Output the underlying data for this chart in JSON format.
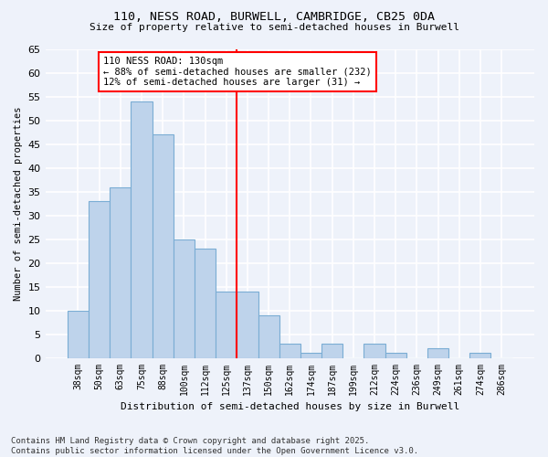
{
  "title1": "110, NESS ROAD, BURWELL, CAMBRIDGE, CB25 0DA",
  "title2": "Size of property relative to semi-detached houses in Burwell",
  "xlabel": "Distribution of semi-detached houses by size in Burwell",
  "ylabel": "Number of semi-detached properties",
  "categories": [
    "38sqm",
    "50sqm",
    "63sqm",
    "75sqm",
    "88sqm",
    "100sqm",
    "112sqm",
    "125sqm",
    "137sqm",
    "150sqm",
    "162sqm",
    "174sqm",
    "187sqm",
    "199sqm",
    "212sqm",
    "224sqm",
    "236sqm",
    "249sqm",
    "261sqm",
    "274sqm",
    "286sqm"
  ],
  "values": [
    10,
    33,
    36,
    54,
    47,
    25,
    23,
    14,
    14,
    9,
    3,
    1,
    3,
    0,
    3,
    1,
    0,
    2,
    0,
    1,
    0
  ],
  "bar_color": "#bed3eb",
  "bar_edgecolor": "#7aadd4",
  "bg_color": "#eef2fa",
  "grid_color": "#ffffff",
  "annotation_text1": "110 NESS ROAD: 130sqm",
  "annotation_text2": "← 88% of semi-detached houses are smaller (232)",
  "annotation_text3": "12% of semi-detached houses are larger (31) →",
  "footer1": "Contains HM Land Registry data © Crown copyright and database right 2025.",
  "footer2": "Contains public sector information licensed under the Open Government Licence v3.0.",
  "ylim": [
    0,
    65
  ],
  "yticks": [
    0,
    5,
    10,
    15,
    20,
    25,
    30,
    35,
    40,
    45,
    50,
    55,
    60,
    65
  ],
  "red_line_x": 7.5
}
